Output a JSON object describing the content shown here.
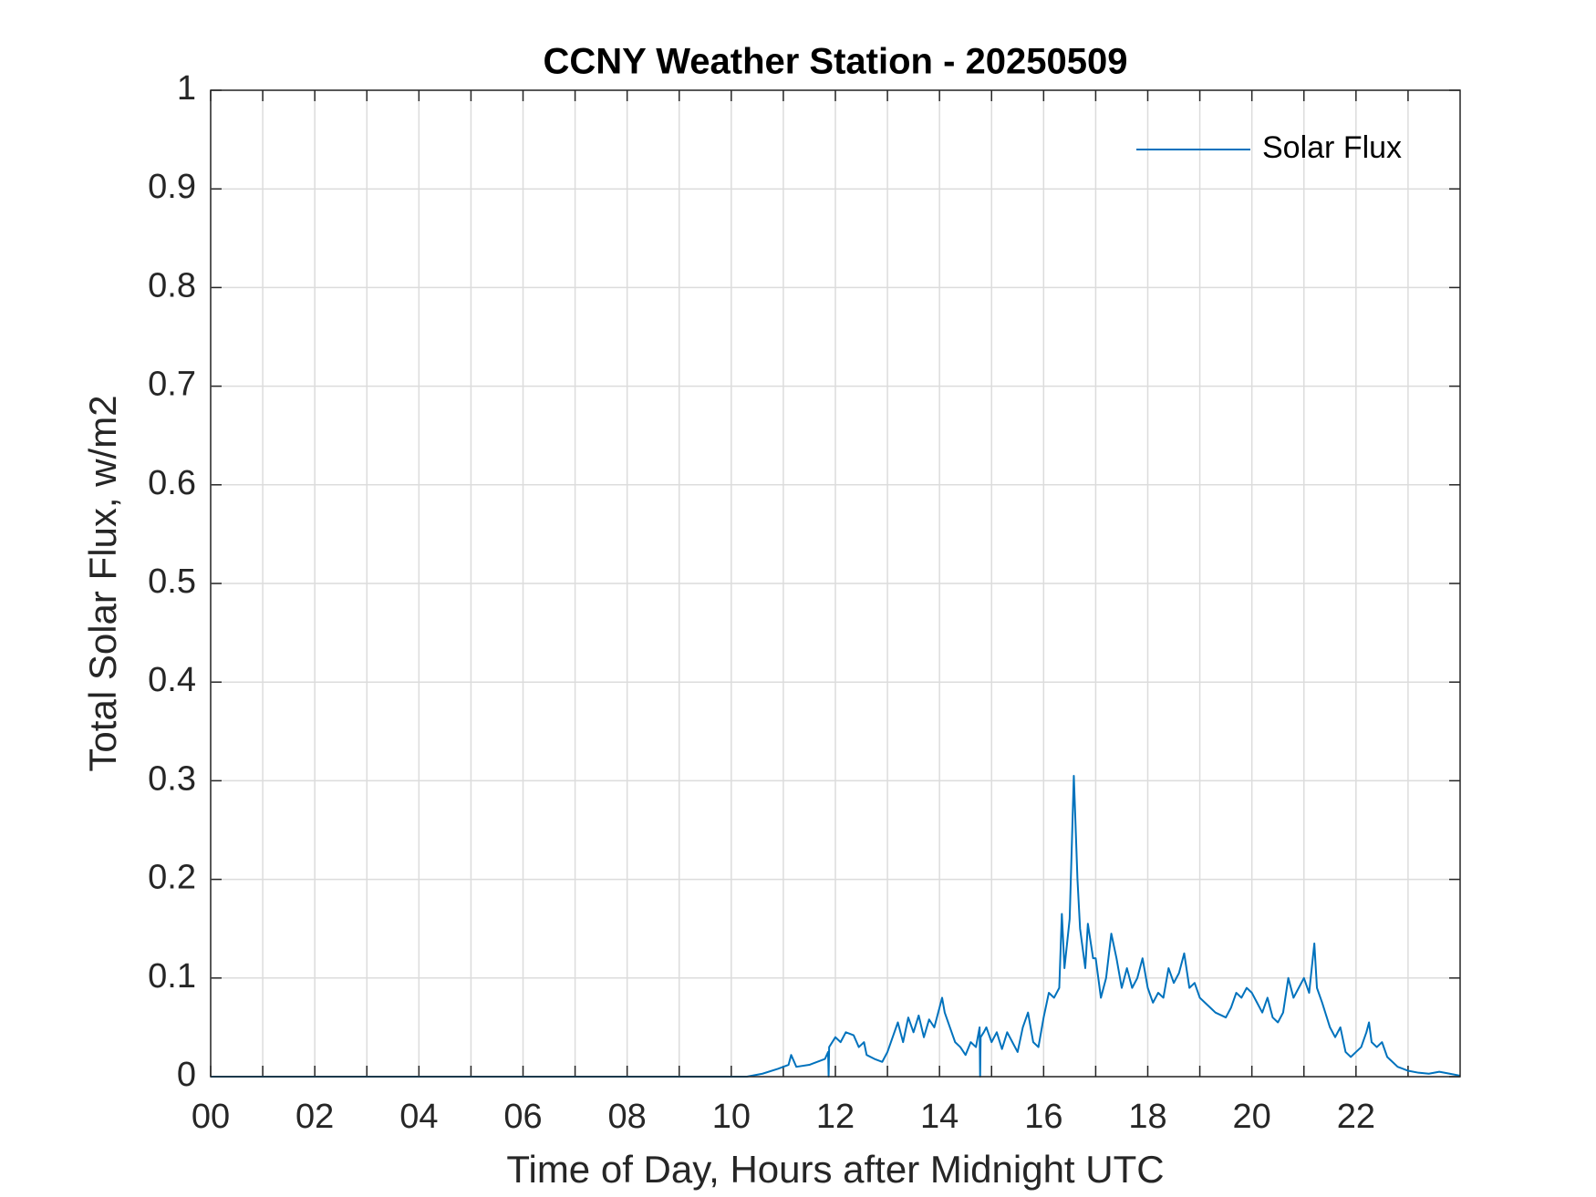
{
  "chart_data": {
    "type": "line",
    "title": "CCNY Weather Station - 20250509",
    "xlabel": "Time of Day, Hours after Midnight UTC",
    "ylabel": "Total Solar Flux, w/m2",
    "xlim": [
      0,
      24
    ],
    "ylim": [
      0,
      1
    ],
    "xticks": [
      {
        "value": 0,
        "label": "00"
      },
      {
        "value": 2,
        "label": "02"
      },
      {
        "value": 4,
        "label": "04"
      },
      {
        "value": 6,
        "label": "06"
      },
      {
        "value": 8,
        "label": "08"
      },
      {
        "value": 10,
        "label": "10"
      },
      {
        "value": 12,
        "label": "12"
      },
      {
        "value": 14,
        "label": "14"
      },
      {
        "value": 16,
        "label": "16"
      },
      {
        "value": 18,
        "label": "18"
      },
      {
        "value": 20,
        "label": "20"
      },
      {
        "value": 22,
        "label": "22"
      }
    ],
    "x_minor_ticks": [
      1,
      3,
      5,
      7,
      9,
      11,
      13,
      15,
      17,
      19,
      21,
      23
    ],
    "yticks": [
      0,
      0.1,
      0.2,
      0.3,
      0.4,
      0.5,
      0.6,
      0.7,
      0.8,
      0.9,
      1
    ],
    "grid": true,
    "legend_position": "upper-right",
    "x": [
      0,
      10.3,
      10.6,
      10.9,
      11.1,
      11.15,
      11.25,
      11.5,
      11.8,
      11.86,
      11.87,
      11.88,
      12.0,
      12.1,
      12.2,
      12.35,
      12.45,
      12.55,
      12.6,
      12.75,
      12.9,
      13.0,
      13.1,
      13.2,
      13.3,
      13.4,
      13.5,
      13.6,
      13.7,
      13.8,
      13.9,
      14.0,
      14.05,
      14.1,
      14.2,
      14.3,
      14.4,
      14.5,
      14.6,
      14.7,
      14.77,
      14.78,
      14.79,
      14.85,
      14.9,
      15.0,
      15.1,
      15.2,
      15.3,
      15.4,
      15.5,
      15.6,
      15.7,
      15.8,
      15.9,
      16.0,
      16.1,
      16.2,
      16.3,
      16.35,
      16.4,
      16.5,
      16.55,
      16.58,
      16.65,
      16.7,
      16.8,
      16.85,
      16.95,
      17.0,
      17.1,
      17.2,
      17.3,
      17.4,
      17.5,
      17.6,
      17.7,
      17.8,
      17.9,
      18.0,
      18.1,
      18.2,
      18.3,
      18.4,
      18.5,
      18.6,
      18.7,
      18.8,
      18.9,
      19.0,
      19.1,
      19.2,
      19.3,
      19.5,
      19.6,
      19.7,
      19.8,
      19.9,
      20.0,
      20.1,
      20.2,
      20.3,
      20.4,
      20.5,
      20.6,
      20.7,
      20.8,
      20.9,
      21.0,
      21.1,
      21.2,
      21.25,
      21.35,
      21.5,
      21.6,
      21.7,
      21.8,
      21.9,
      22.0,
      22.1,
      22.2,
      22.25,
      22.3,
      22.4,
      22.5,
      22.6,
      22.7,
      22.8,
      22.9,
      23.0,
      23.2,
      23.4,
      23.6,
      23.8,
      24.0
    ],
    "series": [
      {
        "name": "Solar Flux",
        "color": "#0072bd",
        "values": [
          0,
          0,
          0.003,
          0.008,
          0.012,
          0.022,
          0.01,
          0.012,
          0.018,
          0.025,
          0,
          0.03,
          0.04,
          0.035,
          0.045,
          0.042,
          0.03,
          0.035,
          0.022,
          0.018,
          0.015,
          0.025,
          0.04,
          0.055,
          0.035,
          0.06,
          0.045,
          0.062,
          0.04,
          0.058,
          0.05,
          0.07,
          0.08,
          0.065,
          0.05,
          0.035,
          0.03,
          0.022,
          0.035,
          0.03,
          0.05,
          0,
          0.04,
          0.045,
          0.05,
          0.035,
          0.045,
          0.028,
          0.045,
          0.035,
          0.025,
          0.05,
          0.065,
          0.035,
          0.03,
          0.06,
          0.085,
          0.08,
          0.09,
          0.165,
          0.11,
          0.16,
          0.25,
          0.305,
          0.2,
          0.15,
          0.11,
          0.155,
          0.12,
          0.12,
          0.08,
          0.1,
          0.145,
          0.12,
          0.09,
          0.11,
          0.09,
          0.1,
          0.12,
          0.09,
          0.075,
          0.085,
          0.08,
          0.11,
          0.095,
          0.105,
          0.125,
          0.09,
          0.095,
          0.08,
          0.075,
          0.07,
          0.065,
          0.06,
          0.07,
          0.085,
          0.08,
          0.09,
          0.085,
          0.075,
          0.065,
          0.08,
          0.06,
          0.055,
          0.065,
          0.1,
          0.08,
          0.09,
          0.1,
          0.085,
          0.135,
          0.09,
          0.075,
          0.05,
          0.04,
          0.05,
          0.025,
          0.02,
          0.025,
          0.03,
          0.045,
          0.055,
          0.035,
          0.03,
          0.035,
          0.02,
          0.015,
          0.01,
          0.008,
          0.006,
          0.004,
          0.003,
          0.005,
          0.003,
          0.001
        ]
      }
    ]
  }
}
